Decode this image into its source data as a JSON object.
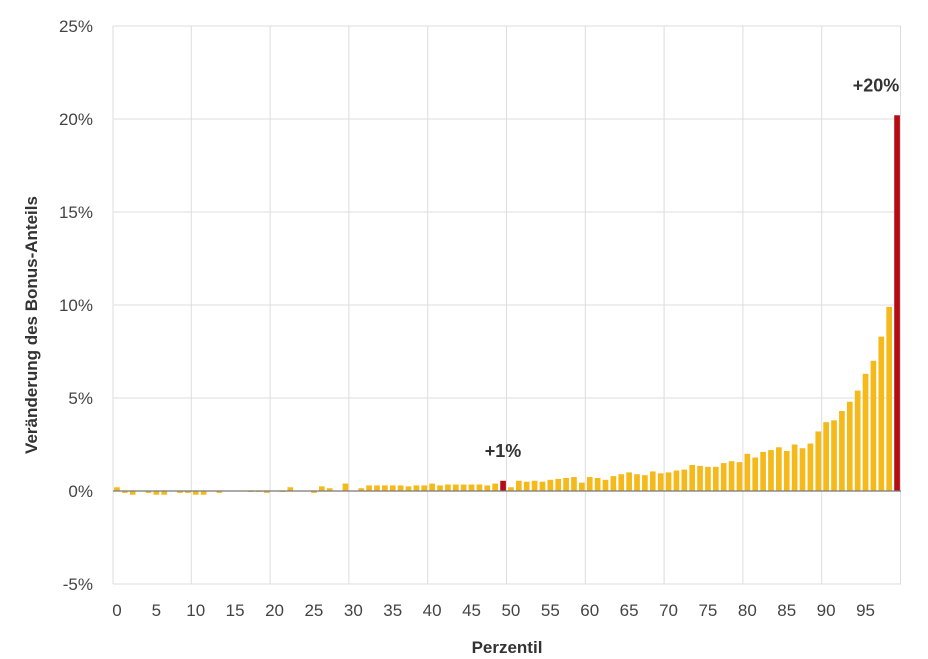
{
  "chart_data": {
    "type": "bar",
    "xlabel": "Perzentil",
    "ylabel": "Veränderung des Bonus-Anteils",
    "ylim": [
      -5,
      25
    ],
    "yticks": [
      -5,
      0,
      5,
      10,
      15,
      20,
      25
    ],
    "ytick_labels": [
      "-5%",
      "0%",
      "5%",
      "10%",
      "15%",
      "20%",
      "25%"
    ],
    "xticks": [
      0,
      5,
      10,
      15,
      20,
      25,
      30,
      35,
      40,
      45,
      50,
      55,
      60,
      65,
      70,
      75,
      80,
      85,
      90,
      95
    ],
    "grid": "vertical",
    "x": [
      0,
      1,
      2,
      3,
      4,
      5,
      6,
      7,
      8,
      9,
      10,
      11,
      12,
      13,
      14,
      15,
      16,
      17,
      18,
      19,
      20,
      21,
      22,
      23,
      24,
      25,
      26,
      27,
      28,
      29,
      30,
      31,
      32,
      33,
      34,
      35,
      36,
      37,
      38,
      39,
      40,
      41,
      42,
      43,
      44,
      45,
      46,
      47,
      48,
      49,
      50,
      51,
      52,
      53,
      54,
      55,
      56,
      57,
      58,
      59,
      60,
      61,
      62,
      63,
      64,
      65,
      66,
      67,
      68,
      69,
      70,
      71,
      72,
      73,
      74,
      75,
      76,
      77,
      78,
      79,
      80,
      81,
      82,
      83,
      84,
      85,
      86,
      87,
      88,
      89,
      90,
      91,
      92,
      93,
      94,
      95,
      96,
      97,
      98,
      99
    ],
    "values": [
      0.2,
      -0.1,
      -0.2,
      0.0,
      -0.1,
      -0.2,
      -0.2,
      0.0,
      -0.1,
      -0.1,
      -0.2,
      -0.2,
      0.0,
      -0.1,
      0.0,
      0.0,
      0.0,
      -0.05,
      -0.05,
      -0.1,
      0.0,
      -0.05,
      0.2,
      0.0,
      0.0,
      -0.1,
      0.25,
      0.15,
      0.0,
      0.4,
      0.0,
      0.15,
      0.3,
      0.3,
      0.3,
      0.3,
      0.3,
      0.25,
      0.3,
      0.3,
      0.4,
      0.3,
      0.35,
      0.35,
      0.35,
      0.35,
      0.35,
      0.3,
      0.4,
      0.55,
      0.2,
      0.55,
      0.5,
      0.55,
      0.5,
      0.6,
      0.65,
      0.7,
      0.75,
      0.45,
      0.75,
      0.7,
      0.6,
      0.8,
      0.9,
      1.0,
      0.9,
      0.85,
      1.05,
      0.95,
      1.0,
      1.1,
      1.15,
      1.4,
      1.35,
      1.3,
      1.3,
      1.5,
      1.6,
      1.55,
      2.0,
      1.8,
      2.1,
      2.2,
      2.35,
      2.15,
      2.5,
      2.3,
      2.55,
      3.2,
      3.7,
      3.8,
      4.3,
      4.8,
      5.4,
      6.3,
      7.0,
      8.3,
      9.9,
      20.2
    ],
    "highlight": [
      49,
      99
    ],
    "annotations": [
      {
        "label": "+1%",
        "x": 49
      },
      {
        "label": "+20%",
        "x": 99
      }
    ],
    "colors": {
      "bar": "#F5B91A",
      "highlight": "#B50B12",
      "grid": "#dddddd",
      "zero_line": "#777777",
      "text": "#444444"
    }
  }
}
